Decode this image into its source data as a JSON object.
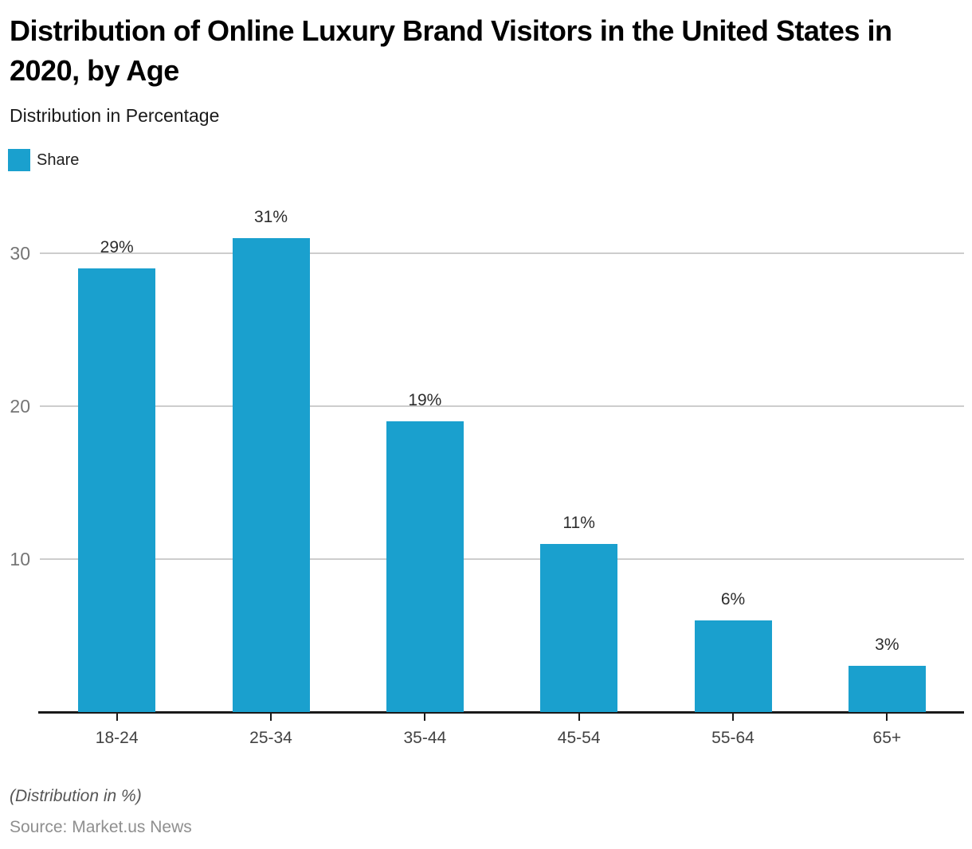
{
  "header": {
    "title": "Distribution of Online Luxury Brand Visitors in the United States in 2020, by Age",
    "subtitle": "Distribution in Percentage"
  },
  "legend": {
    "label": "Share",
    "swatch_color": "#1AA0CE"
  },
  "chart_data": {
    "type": "bar",
    "title": "Distribution of Online Luxury Brand Visitors in the United States in 2020, by Age",
    "subtitle": "Distribution in Percentage",
    "categories": [
      "18-24",
      "25-34",
      "35-44",
      "45-54",
      "55-64",
      "65+"
    ],
    "series": [
      {
        "name": "Share",
        "values": [
          29,
          31,
          19,
          11,
          6,
          3
        ]
      }
    ],
    "value_labels": [
      "29%",
      "31%",
      "19%",
      "11%",
      "6%",
      "3%"
    ],
    "xlabel": "",
    "ylabel": "Distribution in Percentage",
    "ylim": [
      0,
      33
    ],
    "yticks": [
      10,
      20,
      30
    ],
    "grid": true,
    "legend_position": "top-left",
    "bar_color": "#1AA0CE",
    "gridline_color": "#cdcdcd",
    "axis_color": "#1a1a1a"
  },
  "footer": {
    "note": "(Distribution in %)",
    "source": "Source: Market.us News"
  }
}
